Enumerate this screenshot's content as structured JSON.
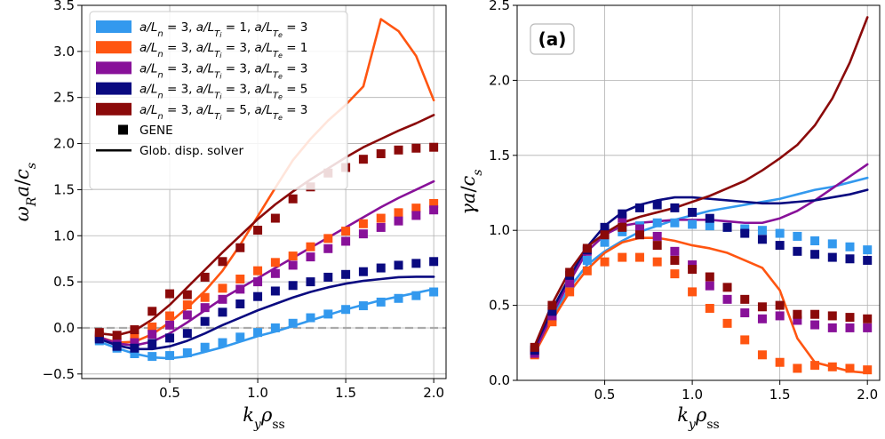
{
  "chart_data": [
    {
      "type": "line",
      "id": "left",
      "ylabel": "ω_R a / c_s",
      "xlabel": "k_y ρ_ss",
      "xlim": [
        0.0,
        2.07
      ],
      "ylim": [
        -0.55,
        3.5
      ],
      "xticks": [
        0.5,
        1.0,
        1.5,
        2.0
      ],
      "xtick_labels": [
        "0.5",
        "1.0",
        "1.5",
        "2.0"
      ],
      "yticks": [
        -0.5,
        0.0,
        0.5,
        1.0,
        1.5,
        2.0,
        2.5,
        3.0,
        3.5
      ],
      "ytick_labels": [
        "−0.5",
        "0.0",
        "0.5",
        "1.0",
        "1.5",
        "2.0",
        "2.5",
        "3.0",
        "3.5"
      ],
      "grid": true,
      "hline": 0.0,
      "legend_position": "top-left",
      "legend": [
        {
          "label": "a/L_n = 3, a/L_Ti = 1, a/L_Te = 3",
          "color": "#3399ee"
        },
        {
          "label": "a/L_n = 3, a/L_Ti = 3, a/L_Te = 1",
          "color": "#ff5511"
        },
        {
          "label": "a/L_n = 3, a/L_Ti = 3, a/L_Te = 3",
          "color": "#881199"
        },
        {
          "label": "a/L_n = 3, a/L_Ti = 3, a/L_Te = 5",
          "color": "#0a0a80"
        },
        {
          "label": "a/L_n = 3, a/L_Ti = 5, a/L_Te = 3",
          "color": "#8b0a0a"
        },
        {
          "label": "GENE",
          "marker": "square"
        },
        {
          "label": "Glob. disp. solver",
          "marker": "line"
        }
      ],
      "x_markers": [
        0.1,
        0.2,
        0.3,
        0.4,
        0.5,
        0.6,
        0.7,
        0.8,
        0.9,
        1.0,
        1.1,
        1.2,
        1.3,
        1.4,
        1.5,
        1.6,
        1.7,
        1.8,
        1.9,
        2.0
      ],
      "x_lines": [
        0.1,
        0.2,
        0.3,
        0.4,
        0.5,
        0.6,
        0.7,
        0.8,
        0.9,
        1.0,
        1.1,
        1.2,
        1.3,
        1.4,
        1.5,
        1.6,
        1.7,
        1.8,
        1.9,
        2.0
      ],
      "series": [
        {
          "name": "a/L_n = 3, a/L_Ti = 1, a/L_Te = 3",
          "color": "#3399ee",
          "gene": [
            -0.14,
            -0.22,
            -0.28,
            -0.31,
            -0.3,
            -0.27,
            -0.21,
            -0.16,
            -0.1,
            -0.05,
            0.0,
            0.05,
            0.11,
            0.15,
            0.2,
            0.24,
            0.28,
            0.32,
            0.35,
            0.39
          ],
          "solver": [
            -0.15,
            -0.22,
            -0.28,
            -0.32,
            -0.33,
            -0.31,
            -0.26,
            -0.21,
            -0.15,
            -0.09,
            -0.04,
            0.02,
            0.08,
            0.14,
            0.2,
            0.25,
            0.3,
            0.34,
            0.38,
            0.42
          ]
        },
        {
          "name": "a/L_n = 3, a/L_Ti = 3, a/L_Te = 1",
          "color": "#ff5511",
          "gene": [
            -0.08,
            -0.12,
            -0.09,
            0.01,
            0.13,
            0.25,
            0.33,
            0.43,
            0.53,
            0.62,
            0.71,
            0.78,
            0.88,
            0.97,
            1.05,
            1.13,
            1.19,
            1.25,
            1.3,
            1.35
          ],
          "solver": [
            -0.1,
            -0.16,
            -0.15,
            -0.07,
            0.06,
            0.22,
            0.4,
            0.62,
            0.9,
            1.21,
            1.52,
            1.82,
            2.05,
            2.25,
            2.42,
            2.62,
            3.35,
            3.22,
            2.95,
            2.47
          ]
        },
        {
          "name": "a/L_n = 3, a/L_Ti = 3, a/L_Te = 3",
          "color": "#881199",
          "gene": [
            -0.1,
            -0.16,
            -0.16,
            -0.07,
            0.03,
            0.14,
            0.22,
            0.31,
            0.42,
            0.5,
            0.59,
            0.68,
            0.77,
            0.86,
            0.94,
            1.02,
            1.09,
            1.16,
            1.22,
            1.28
          ],
          "solver": [
            -0.1,
            -0.17,
            -0.19,
            -0.15,
            -0.06,
            0.06,
            0.19,
            0.32,
            0.43,
            0.54,
            0.65,
            0.76,
            0.87,
            0.98,
            1.09,
            1.2,
            1.31,
            1.41,
            1.5,
            1.59
          ]
        },
        {
          "name": "a/L_n = 3, a/L_Ti = 3, a/L_Te = 5",
          "color": "#0a0a80",
          "gene": [
            -0.12,
            -0.2,
            -0.22,
            -0.17,
            -0.11,
            -0.06,
            0.07,
            0.17,
            0.26,
            0.34,
            0.4,
            0.46,
            0.5,
            0.55,
            0.58,
            0.61,
            0.65,
            0.68,
            0.7,
            0.72
          ],
          "solver": [
            -0.12,
            -0.19,
            -0.23,
            -0.23,
            -0.2,
            -0.14,
            -0.06,
            0.03,
            0.11,
            0.19,
            0.26,
            0.33,
            0.39,
            0.44,
            0.48,
            0.51,
            0.53,
            0.55,
            0.555,
            0.555
          ]
        },
        {
          "name": "a/L_n = 3, a/L_Ti = 5, a/L_Te = 3",
          "color": "#8b0a0a",
          "gene": [
            -0.05,
            -0.08,
            -0.02,
            0.18,
            0.37,
            0.36,
            0.55,
            0.72,
            0.87,
            1.06,
            1.19,
            1.4,
            1.53,
            1.68,
            1.74,
            1.83,
            1.89,
            1.93,
            1.95,
            1.96
          ],
          "solver": [
            -0.06,
            -0.08,
            -0.03,
            0.09,
            0.25,
            0.44,
            0.63,
            0.82,
            1.0,
            1.18,
            1.34,
            1.48,
            1.61,
            1.73,
            1.85,
            1.96,
            2.05,
            2.14,
            2.22,
            2.31
          ]
        }
      ]
    },
    {
      "type": "line",
      "id": "right",
      "panel_label": "(a)",
      "ylabel": "γ a / c_s",
      "xlabel": "k_y ρ_ss",
      "xlim": [
        0.0,
        2.07
      ],
      "ylim": [
        0.0,
        2.5
      ],
      "xticks": [
        0.5,
        1.0,
        1.5,
        2.0
      ],
      "xtick_labels": [
        "0.5",
        "1.0",
        "1.5",
        "2.0"
      ],
      "yticks": [
        0.0,
        0.5,
        1.0,
        1.5,
        2.0,
        2.5
      ],
      "ytick_labels": [
        "0.0",
        "0.5",
        "1.0",
        "1.5",
        "2.0",
        "2.5"
      ],
      "grid": true,
      "x_markers": [
        0.1,
        0.2,
        0.3,
        0.4,
        0.5,
        0.6,
        0.7,
        0.8,
        0.9,
        1.0,
        1.1,
        1.2,
        1.3,
        1.4,
        1.5,
        1.6,
        1.7,
        1.8,
        1.9,
        2.0
      ],
      "x_lines": [
        0.1,
        0.2,
        0.3,
        0.4,
        0.5,
        0.6,
        0.7,
        0.8,
        0.9,
        1.0,
        1.1,
        1.2,
        1.3,
        1.4,
        1.5,
        1.6,
        1.7,
        1.8,
        1.9,
        2.0
      ],
      "series": [
        {
          "name": "a/L_n = 3, a/L_Ti = 1, a/L_Te = 3",
          "color": "#3399ee",
          "gene": [
            0.21,
            0.42,
            0.63,
            0.8,
            0.92,
            0.99,
            1.03,
            1.05,
            1.05,
            1.04,
            1.03,
            1.02,
            1.01,
            1.0,
            0.98,
            0.96,
            0.93,
            0.91,
            0.89,
            0.87
          ],
          "solver": [
            0.21,
            0.42,
            0.62,
            0.77,
            0.86,
            0.93,
            0.99,
            1.03,
            1.07,
            1.1,
            1.13,
            1.15,
            1.17,
            1.19,
            1.21,
            1.24,
            1.27,
            1.29,
            1.32,
            1.35
          ]
        },
        {
          "name": "a/L_n = 3, a/L_Ti = 3, a/L_Te = 1",
          "color": "#ff5511",
          "gene": [
            0.17,
            0.39,
            0.59,
            0.73,
            0.79,
            0.82,
            0.82,
            0.79,
            0.71,
            0.59,
            0.48,
            0.38,
            0.27,
            0.17,
            0.12,
            0.08,
            0.1,
            0.09,
            0.08,
            0.07
          ],
          "solver": [
            0.18,
            0.4,
            0.59,
            0.74,
            0.85,
            0.92,
            0.95,
            0.95,
            0.93,
            0.9,
            0.88,
            0.85,
            0.8,
            0.75,
            0.6,
            0.28,
            0.12,
            0.09,
            0.06,
            0.05
          ]
        },
        {
          "name": "a/L_n = 3, a/L_Ti = 3, a/L_Te = 3",
          "color": "#881199",
          "gene": [
            0.18,
            0.43,
            0.65,
            0.86,
            0.98,
            1.08,
            1.01,
            0.96,
            0.86,
            0.77,
            0.63,
            0.54,
            0.45,
            0.41,
            0.43,
            0.4,
            0.37,
            0.35,
            0.35,
            0.35
          ],
          "solver": [
            0.19,
            0.44,
            0.66,
            0.86,
            0.97,
            1.03,
            1.05,
            1.06,
            1.07,
            1.07,
            1.07,
            1.06,
            1.05,
            1.05,
            1.08,
            1.13,
            1.2,
            1.28,
            1.36,
            1.44
          ]
        },
        {
          "name": "a/L_n = 3, a/L_Ti = 3, a/L_Te = 5",
          "color": "#0a0a80",
          "gene": [
            0.2,
            0.46,
            0.7,
            0.87,
            1.02,
            1.11,
            1.15,
            1.17,
            1.15,
            1.12,
            1.08,
            1.02,
            0.98,
            0.94,
            0.9,
            0.86,
            0.84,
            0.82,
            0.81,
            0.8
          ],
          "solver": [
            0.22,
            0.47,
            0.69,
            0.89,
            1.03,
            1.12,
            1.17,
            1.2,
            1.22,
            1.22,
            1.21,
            1.2,
            1.19,
            1.18,
            1.18,
            1.19,
            1.2,
            1.22,
            1.24,
            1.27
          ]
        },
        {
          "name": "a/L_n = 3, a/L_Ti = 5, a/L_Te = 3",
          "color": "#8b0a0a",
          "gene": [
            0.22,
            0.5,
            0.72,
            0.88,
            0.97,
            1.02,
            0.97,
            0.9,
            0.8,
            0.74,
            0.69,
            0.62,
            0.54,
            0.49,
            0.5,
            0.44,
            0.44,
            0.43,
            0.42,
            0.41
          ],
          "solver": [
            0.23,
            0.51,
            0.73,
            0.89,
            0.98,
            1.05,
            1.09,
            1.12,
            1.15,
            1.19,
            1.23,
            1.28,
            1.33,
            1.4,
            1.48,
            1.57,
            1.7,
            1.88,
            2.12,
            2.42
          ]
        }
      ]
    }
  ]
}
